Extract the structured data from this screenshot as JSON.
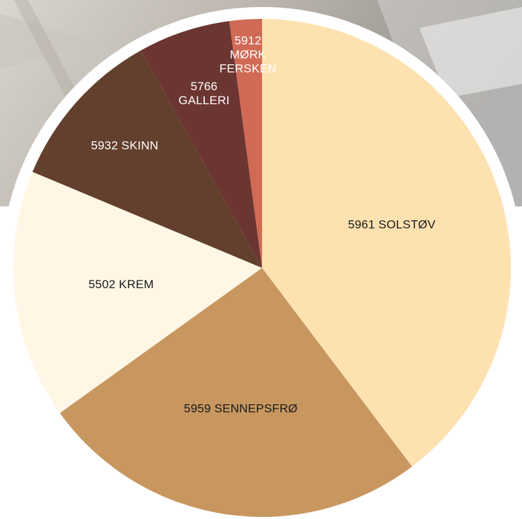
{
  "chart_data": {
    "type": "pie",
    "categories": [
      "5961 SOLSTØV",
      "5959 SENNEPSFRØ",
      "5502 KREM",
      "5932 SKINN",
      "5766 GALLERI",
      "5912 MØRK FERSKEN"
    ],
    "values": [
      39.7,
      25.4,
      16.2,
      10.6,
      6.0,
      2.1
    ],
    "colors": [
      "#FDE2B0",
      "#C8975F",
      "#FFF6E6",
      "#633F2D",
      "#6B3531",
      "#D06A55"
    ],
    "label_colors": [
      "#1a1a1a",
      "#1a1a1a",
      "#1a1a1a",
      "#ffffff",
      "#ffffff",
      "#ffffff"
    ],
    "start_angle_deg": 0,
    "direction": "clockwise",
    "legend": "none"
  }
}
